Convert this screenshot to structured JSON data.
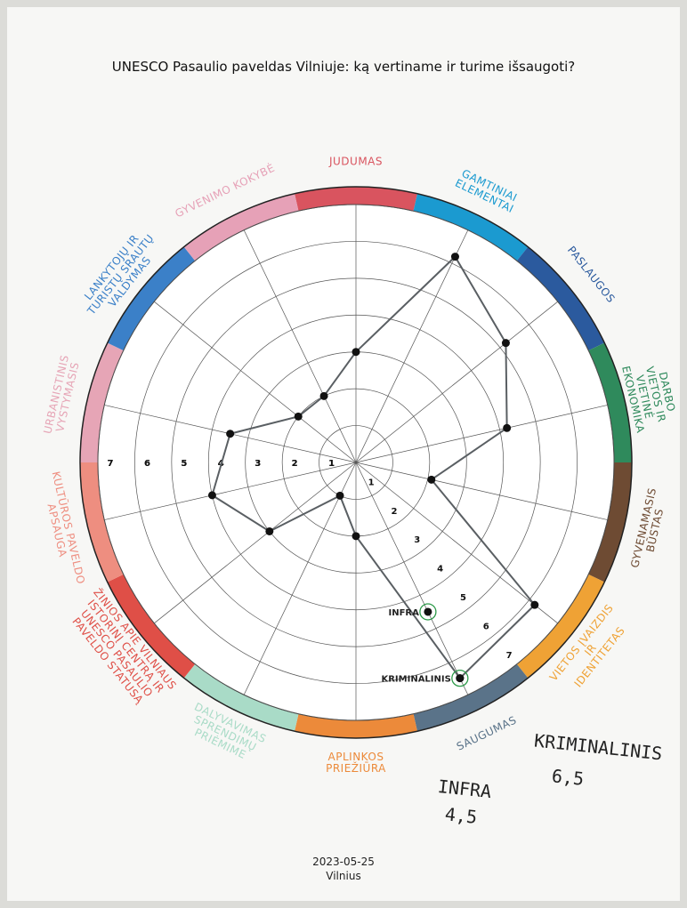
{
  "chart_data": {
    "type": "radar",
    "title": "UNESCO Pasaulio paveldas Vilniuje: ką vertiname ir turime išsaugoti?",
    "categories": [
      "JUDUMAS",
      "GAMTINIAI\nELEMENTAI",
      "PASLAUGOS",
      "DARBO VIETOS IR\nVIETINĖ EKONOMIKA",
      "GYVENAMASIS\nBŪSTAS",
      "VIETOS ĮVAIZDIS IR\nIDENTITETAS",
      "SAUGUMAS",
      "APLINKOS\nPRIEŽIŪRA",
      "DALYVAVIMAS\nSPRENDIMŲ\nPRIĖMIME",
      "ŽINIOS APIE VILNIAUS\nISTORINĮ CENTRĄ IR\nUNESCO PASAULIO\nPAVELDO STATUSĄ",
      "KULTŪROS PAVELDO\nAPSAUGA",
      "URBANISTINIS\nVYSTYMASIS",
      "LANKYTOJŲ IR\nTURISTŲ SRAUTŲ\nVALDYMAS",
      "GYVENIMO KOKYBĖ"
    ],
    "category_colors": [
      "#d9545f",
      "#1b9ad0",
      "#2b5a9e",
      "#2f8a5c",
      "#6e4b33",
      "#efa235",
      "#5a7389",
      "#ec8a3a",
      "#a9dbc7",
      "#df4f47",
      "#ee8e80",
      "#e6a5b6",
      "#3b80c8",
      "#e6a1b7"
    ],
    "values": [
      3,
      6.2,
      5.2,
      4.2,
      2.1,
      6.2,
      6.5,
      2,
      1,
      3,
      4,
      3.5,
      2,
      2
    ],
    "line_color": "#5a5f63",
    "rlim": [
      0,
      7
    ],
    "rticks": [
      1,
      2,
      3,
      4,
      5,
      6,
      7
    ],
    "annotations": [
      {
        "text": "INFRA",
        "category": "SAUGUMAS",
        "value": 4.5,
        "value_label": "4,5"
      },
      {
        "text": "KRIMINALINIS",
        "category": "SAUGUMAS",
        "value": 6.5,
        "value_label": "6,5"
      }
    ],
    "date": "2023-05-25",
    "place": "Vilnius"
  }
}
